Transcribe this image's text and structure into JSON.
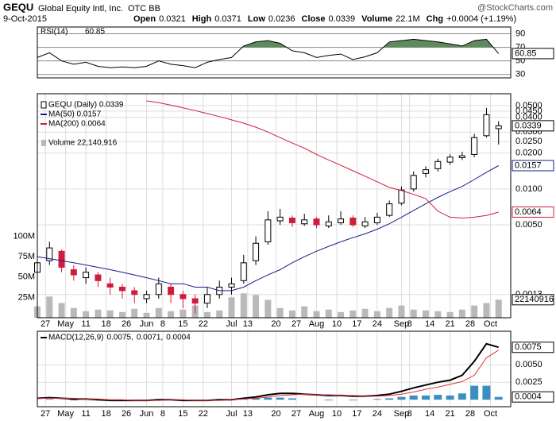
{
  "header": {
    "symbol": "GEQU",
    "company": "Global Equity Intl, Inc.",
    "exchange": "OTC BB",
    "source": "@StockCharts.com",
    "date": "9-Oct-2015",
    "quote": [
      {
        "label": "Open",
        "value": "0.0321"
      },
      {
        "label": "High",
        "value": "0.0371"
      },
      {
        "label": "Low",
        "value": "0.0236"
      },
      {
        "label": "Close",
        "value": "0.0339"
      },
      {
        "label": "Volume",
        "value": "22.1M"
      },
      {
        "label": "Chg",
        "value": "+0.0004 (+1.19%)"
      }
    ]
  },
  "chart_data": [
    {
      "type": "line",
      "x": [
        0,
        3,
        6,
        9,
        12,
        15,
        18,
        21,
        24,
        27,
        30,
        33,
        36,
        39,
        42,
        45,
        48,
        51,
        54,
        57,
        60,
        63,
        66,
        69,
        72,
        75,
        78,
        81,
        84,
        87,
        90,
        93,
        96,
        99,
        102,
        105,
        108,
        111,
        114
      ],
      "xlim": [
        0,
        117
      ],
      "ylim": [
        25,
        100
      ],
      "yticks": [
        90,
        70,
        50,
        30
      ],
      "fill_above": 70,
      "fill_color": "#5d8b5d",
      "series": [
        {
          "name": "RSI(14)",
          "legend_value": "60.85",
          "box_label": "60.85",
          "color": "#000000",
          "values": [
            55,
            62,
            50,
            45,
            48,
            42,
            40,
            41,
            40,
            42,
            50,
            45,
            43,
            40,
            48,
            52,
            55,
            72,
            78,
            80,
            76,
            65,
            62,
            55,
            58,
            60,
            52,
            56,
            62,
            78,
            80,
            82,
            80,
            78,
            75,
            72,
            80,
            82,
            60.85
          ]
        }
      ]
    },
    {
      "type": "candlestick",
      "log_scale": true,
      "x": [
        0,
        3,
        6,
        9,
        12,
        15,
        18,
        21,
        24,
        27,
        30,
        33,
        36,
        39,
        42,
        45,
        48,
        51,
        54,
        57,
        60,
        63,
        66,
        69,
        72,
        75,
        78,
        81,
        84,
        87,
        90,
        93,
        96,
        99,
        102,
        105,
        108,
        111,
        114
      ],
      "xlim": [
        0,
        117
      ],
      "xticks": [
        {
          "value": 2,
          "label": "27"
        },
        {
          "value": 7,
          "label": "May"
        },
        {
          "value": 12,
          "label": "11"
        },
        {
          "value": 17,
          "label": "18"
        },
        {
          "value": 22,
          "label": "26"
        },
        {
          "value": 27,
          "label": "Jun"
        },
        {
          "value": 31,
          "label": "8"
        },
        {
          "value": 36,
          "label": "15"
        },
        {
          "value": 41,
          "label": "22"
        },
        {
          "value": 48,
          "label": "Jul"
        },
        {
          "value": 52,
          "label": "13"
        },
        {
          "value": 59,
          "label": "20"
        },
        {
          "value": 64,
          "label": "27"
        },
        {
          "value": 69,
          "label": "Aug"
        },
        {
          "value": 74,
          "label": "10"
        },
        {
          "value": 79,
          "label": "17"
        },
        {
          "value": 84,
          "label": "24"
        },
        {
          "value": 90,
          "label": "Sep"
        },
        {
          "value": 92,
          "label": "8"
        },
        {
          "value": 97,
          "label": "14"
        },
        {
          "value": 102,
          "label": "21"
        },
        {
          "value": 107,
          "label": "28"
        },
        {
          "value": 112,
          "label": "Oct"
        }
      ],
      "ylim": [
        0.00083,
        0.063
      ],
      "yticks": [
        {
          "value": 0.05,
          "label": "0.0500"
        },
        {
          "value": 0.045,
          "label": "0.0450"
        },
        {
          "value": 0.04,
          "label": "0.0400"
        },
        {
          "value": 0.03,
          "label": "0.0300"
        },
        {
          "value": 0.025,
          "label": "0.0250"
        },
        {
          "value": 0.02,
          "label": "0.0200"
        },
        {
          "value": 0.01,
          "label": "0.0100"
        },
        {
          "value": 0.005,
          "label": "0.0050"
        },
        {
          "value": 0.0013,
          "label": "0.0013"
        }
      ],
      "legend": "GEQU (Daily) 0.0339",
      "box_label": "0.0339",
      "up_color": "#000000",
      "down_color": "#d01c3a",
      "open": [
        0.002,
        0.0025,
        0.003,
        0.0021,
        0.0018,
        0.0019,
        0.0016,
        0.0015,
        0.0014,
        0.0012,
        0.0013,
        0.0015,
        0.0013,
        0.0012,
        0.0011,
        0.0013,
        0.0015,
        0.0017,
        0.0025,
        0.0036,
        0.0054,
        0.0057,
        0.0051,
        0.0056,
        0.0049,
        0.0052,
        0.0057,
        0.0049,
        0.0052,
        0.006,
        0.0076,
        0.01,
        0.0135,
        0.0148,
        0.0168,
        0.0183,
        0.0195,
        0.028,
        0.0321
      ],
      "high": [
        0.0027,
        0.0036,
        0.0031,
        0.0023,
        0.0022,
        0.002,
        0.0018,
        0.0016,
        0.0015,
        0.0014,
        0.0018,
        0.0016,
        0.0014,
        0.0013,
        0.0015,
        0.0017,
        0.0018,
        0.0028,
        0.004,
        0.0065,
        0.0068,
        0.006,
        0.0062,
        0.0058,
        0.006,
        0.0065,
        0.006,
        0.0058,
        0.0063,
        0.008,
        0.0105,
        0.014,
        0.0155,
        0.018,
        0.0195,
        0.0205,
        0.029,
        0.048,
        0.0371
      ],
      "low": [
        0.0018,
        0.0023,
        0.002,
        0.0017,
        0.0016,
        0.0015,
        0.0013,
        0.0012,
        0.0011,
        0.0011,
        0.0012,
        0.0011,
        0.001,
        0.0009,
        0.001,
        0.0012,
        0.0013,
        0.0016,
        0.0023,
        0.0034,
        0.005,
        0.0048,
        0.0049,
        0.0047,
        0.0047,
        0.005,
        0.0048,
        0.0047,
        0.005,
        0.0058,
        0.0073,
        0.0095,
        0.0125,
        0.014,
        0.016,
        0.0175,
        0.0185,
        0.027,
        0.0236
      ],
      "close": [
        0.0024,
        0.0032,
        0.0022,
        0.0019,
        0.002,
        0.0017,
        0.0015,
        0.0014,
        0.0013,
        0.0013,
        0.0016,
        0.0013,
        0.0012,
        0.0011,
        0.0013,
        0.0015,
        0.0016,
        0.0024,
        0.0035,
        0.0055,
        0.0058,
        0.0052,
        0.0055,
        0.005,
        0.0053,
        0.0056,
        0.005,
        0.0053,
        0.0058,
        0.0075,
        0.0098,
        0.013,
        0.0145,
        0.017,
        0.0185,
        0.019,
        0.027,
        0.042,
        0.0339
      ],
      "series": [
        {
          "name": "MA(50) 0.0157",
          "box_label": "0.0157",
          "color": "#1a1a8c",
          "values": [
            0.0027,
            0.0026,
            0.0025,
            0.0024,
            0.0023,
            0.0022,
            0.0021,
            0.002,
            0.0019,
            0.0018,
            0.0017,
            0.0016,
            0.0016,
            0.0015,
            0.0015,
            0.0014,
            0.0014,
            0.0015,
            0.0017,
            0.0019,
            0.0021,
            0.0024,
            0.0027,
            0.003,
            0.0033,
            0.0036,
            0.0039,
            0.0042,
            0.0046,
            0.0051,
            0.0058,
            0.0066,
            0.0075,
            0.0085,
            0.0095,
            0.0105,
            0.012,
            0.0138,
            0.0157
          ]
        },
        {
          "name": "MA(200) 0.0064",
          "box_label": "0.0064",
          "color": "#d01c3a",
          "values": [
            null,
            null,
            null,
            null,
            null,
            null,
            null,
            null,
            null,
            0.0549,
            0.053,
            0.0505,
            0.048,
            0.0455,
            0.043,
            0.0405,
            0.038,
            0.0357,
            0.033,
            0.03,
            0.027,
            0.0243,
            0.022,
            0.0195,
            0.0175,
            0.0158,
            0.0142,
            0.0128,
            0.0115,
            0.0103,
            0.0097,
            0.009,
            0.0083,
            0.0065,
            0.0058,
            0.0057,
            0.0058,
            0.006,
            0.0064
          ]
        }
      ],
      "volume": {
        "legend": "Volume 22,140,916",
        "box_label": "22140916",
        "color": "#b9b9b9",
        "ylim": [
          0,
          275000000
        ],
        "yticks": [
          {
            "value": 25000000,
            "label": "25M"
          },
          {
            "value": 50000000,
            "label": "50M"
          },
          {
            "value": 75000000,
            "label": "75M"
          },
          {
            "value": 100000000,
            "label": "100M"
          }
        ],
        "values": [
          14000000,
          26000000,
          18000000,
          12000000,
          8000000,
          10000000,
          9000000,
          7000000,
          11000000,
          6000000,
          12000000,
          8000000,
          10000000,
          15000000,
          7000000,
          9000000,
          25000000,
          30000000,
          28000000,
          22000000,
          12000000,
          9000000,
          14000000,
          8000000,
          10000000,
          7000000,
          9000000,
          11000000,
          8000000,
          12000000,
          15000000,
          10000000,
          9000000,
          8000000,
          7000000,
          10000000,
          15000000,
          18000000,
          22140916
        ]
      }
    },
    {
      "type": "macd",
      "title": "MACD(12,26,9)",
      "x": [
        0,
        3,
        6,
        9,
        12,
        15,
        18,
        21,
        24,
        27,
        30,
        33,
        36,
        39,
        42,
        45,
        48,
        51,
        54,
        57,
        60,
        63,
        66,
        69,
        72,
        75,
        78,
        81,
        84,
        87,
        90,
        93,
        96,
        99,
        102,
        105,
        108,
        111,
        114
      ],
      "xlim": [
        0,
        117
      ],
      "xticks": [
        {
          "value": 2,
          "label": "27"
        },
        {
          "value": 7,
          "label": "May"
        },
        {
          "value": 12,
          "label": "11"
        },
        {
          "value": 17,
          "label": "18"
        },
        {
          "value": 22,
          "label": "26"
        },
        {
          "value": 27,
          "label": "Jun"
        },
        {
          "value": 31,
          "label": "8"
        },
        {
          "value": 36,
          "label": "15"
        },
        {
          "value": 41,
          "label": "22"
        },
        {
          "value": 48,
          "label": "Jul"
        },
        {
          "value": 52,
          "label": "13"
        },
        {
          "value": 59,
          "label": "20"
        },
        {
          "value": 64,
          "label": "27"
        },
        {
          "value": 69,
          "label": "Aug"
        },
        {
          "value": 74,
          "label": "10"
        },
        {
          "value": 79,
          "label": "17"
        },
        {
          "value": 84,
          "label": "24"
        },
        {
          "value": 90,
          "label": "Sep"
        },
        {
          "value": 92,
          "label": "8"
        },
        {
          "value": 97,
          "label": "14"
        },
        {
          "value": 102,
          "label": "21"
        },
        {
          "value": 107,
          "label": "28"
        },
        {
          "value": 112,
          "label": "Oct"
        }
      ],
      "ylim": [
        -0.001,
        0.0098
      ],
      "yticks": [
        {
          "value": 0.005,
          "label": "0.0050"
        },
        {
          "value": 0.0025,
          "label": "0.0025"
        }
      ],
      "series": [
        {
          "legend_value": "0.0075,",
          "box_label": "0.0075",
          "color": "#000000",
          "kind": "line",
          "values": [
            0.0002,
            0.0003,
            0.0002,
            0.0001,
            0.0001,
            0,
            -0.0001,
            -0.0001,
            -0.0001,
            -0.0001,
            0,
            0,
            -0.0001,
            -0.0001,
            -0.0001,
            0,
            0,
            0.0002,
            0.0004,
            0.0007,
            0.0009,
            0.0009,
            0.0008,
            0.0007,
            0.0006,
            0.0006,
            0.0005,
            0.0005,
            0.0006,
            0.0008,
            0.0012,
            0.0017,
            0.0021,
            0.0025,
            0.0028,
            0.0035,
            0.0055,
            0.008,
            0.0075
          ]
        },
        {
          "legend_value": "0.0071,",
          "color": "#e0303a",
          "kind": "line",
          "values": [
            0.0002,
            0.0002,
            0.0002,
            0.0002,
            0.0001,
            0.0001,
            0,
            0,
            -0.0001,
            -0.0001,
            -0.0001,
            0,
            0,
            -0.0001,
            -0.0001,
            -0.0001,
            0,
            0.0001,
            0.0002,
            0.0004,
            0.0006,
            0.0007,
            0.0008,
            0.0007,
            0.0007,
            0.0006,
            0.0006,
            0.0005,
            0.0005,
            0.0006,
            0.0008,
            0.0011,
            0.0015,
            0.0018,
            0.0022,
            0.0026,
            0.0035,
            0.006,
            0.0071
          ]
        },
        {
          "legend_value": "0.0004",
          "box_label": "0.0004",
          "color": "#3a8fc0",
          "kind": "bar",
          "values": [
            0,
            0.0001,
            0,
            -0.0001,
            0,
            -0.0001,
            -0.0001,
            -0.0001,
            0,
            0,
            0.0001,
            0,
            -0.0001,
            0,
            0,
            0.0001,
            0,
            0.0001,
            0.0002,
            0.0003,
            0.0003,
            0.0002,
            0,
            0,
            -0.0001,
            0,
            -0.0001,
            0,
            0.0001,
            0.0002,
            0.0004,
            0.0006,
            0.0006,
            0.0007,
            0.0006,
            0.0009,
            0.002,
            0.002,
            0.0004
          ]
        }
      ]
    }
  ]
}
